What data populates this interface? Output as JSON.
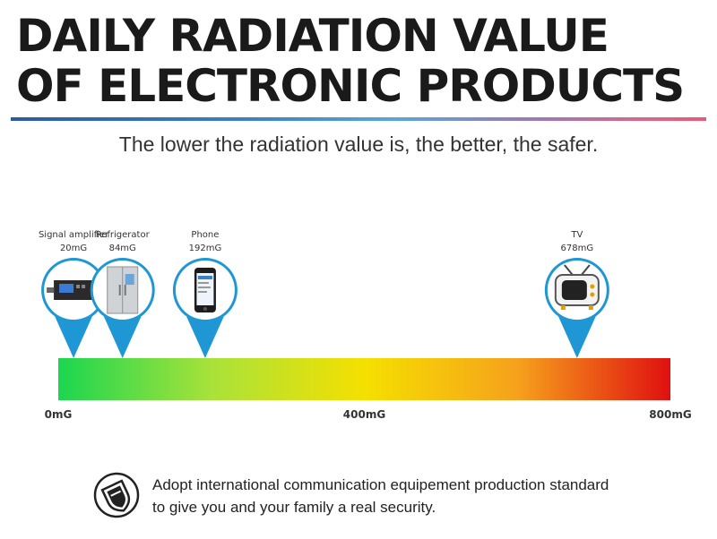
{
  "header": {
    "title_line1": "DAILY RADIATION VALUE",
    "title_line2": "OF ELECTRONIC PRODUCTS",
    "subtitle": "The lower the radiation value is, the better, the safer."
  },
  "chart_data": {
    "type": "scale",
    "unit": "mG",
    "range": [
      0,
      800
    ],
    "tick_labels": [
      "0mG",
      "400mG",
      "800mG"
    ],
    "tick_values": [
      0,
      400,
      800
    ],
    "gradient_colors": [
      "#1bd650",
      "#a8e23a",
      "#f5e000",
      "#f6a11c",
      "#e01010"
    ],
    "items": [
      {
        "name": "Signal amplifier",
        "value": 20,
        "value_label": "20mG",
        "icon": "signal-amplifier-icon"
      },
      {
        "name": "Refrigerator",
        "value": 84,
        "value_label": "84mG",
        "icon": "refrigerator-icon"
      },
      {
        "name": "Phone",
        "value": 192,
        "value_label": "192mG",
        "icon": "phone-icon"
      },
      {
        "name": "TV",
        "value": 678,
        "value_label": "678mG",
        "icon": "tv-icon"
      }
    ]
  },
  "footer": {
    "line1": "Adopt international communication equipement production standard",
    "line2": "to give you and your family a real security.",
    "icon": "shield-icon"
  },
  "colors": {
    "accent_blue": "#1f97d4",
    "title": "#1a1a1a"
  }
}
